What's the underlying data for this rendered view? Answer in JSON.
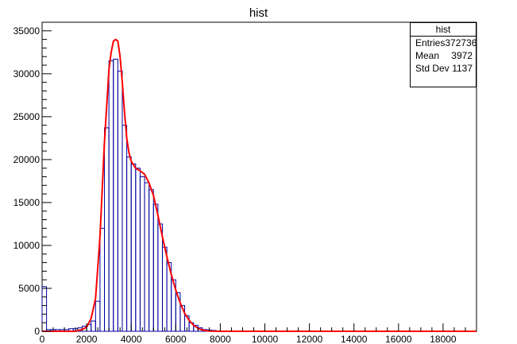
{
  "chart_data": {
    "type": "bar",
    "title": "hist",
    "xlabel": "",
    "ylabel": "",
    "xlim": [
      0,
      19500
    ],
    "ylim": [
      0,
      36000
    ],
    "x_ticks": [
      0,
      2000,
      4000,
      6000,
      8000,
      10000,
      12000,
      14000,
      16000,
      18000
    ],
    "y_ticks": [
      0,
      5000,
      10000,
      15000,
      20000,
      25000,
      30000,
      35000
    ],
    "grid": false,
    "legend": "none",
    "bin_width": 200,
    "histogram": {
      "x": [
        0,
        200,
        400,
        600,
        800,
        1000,
        1200,
        1400,
        1600,
        1800,
        2000,
        2200,
        2400,
        2600,
        2800,
        3000,
        3200,
        3400,
        3600,
        3800,
        4000,
        4200,
        4400,
        4600,
        4800,
        5000,
        5200,
        5400,
        5600,
        5800,
        6000,
        6200,
        6400,
        6600,
        6800,
        7000,
        7200,
        7400,
        7600,
        7800,
        8000
      ],
      "values": [
        5200,
        200,
        200,
        200,
        200,
        200,
        300,
        300,
        400,
        600,
        800,
        1200,
        3500,
        12000,
        23700,
        31500,
        31700,
        30300,
        24000,
        20300,
        19500,
        19000,
        18000,
        17300,
        16500,
        14800,
        12500,
        9800,
        8000,
        6000,
        4500,
        3000,
        1800,
        1000,
        700,
        400,
        200,
        150,
        100,
        50,
        0
      ]
    },
    "fit": {
      "x": [
        0,
        1000,
        1500,
        1800,
        2000,
        2200,
        2400,
        2600,
        2800,
        3000,
        3100,
        3200,
        3300,
        3400,
        3500,
        3600,
        3700,
        3800,
        3900,
        4000,
        4200,
        4400,
        4600,
        4800,
        5000,
        5200,
        5400,
        5600,
        5800,
        6000,
        6200,
        6400,
        6600,
        6800,
        7000,
        7200,
        7400,
        7600,
        7800,
        8000,
        8500,
        19500
      ],
      "values": [
        0,
        0,
        0,
        200,
        500,
        1500,
        3800,
        11000,
        22000,
        30500,
        32500,
        33800,
        34000,
        33800,
        32000,
        29000,
        25500,
        22500,
        20800,
        19800,
        19000,
        18700,
        18300,
        17300,
        15800,
        13500,
        11000,
        8700,
        6600,
        4800,
        3300,
        2100,
        1300,
        700,
        350,
        150,
        60,
        20,
        5,
        0,
        0,
        0
      ],
      "color": "#ff0000"
    },
    "histogram_color": "#0000a0",
    "stats_box": {
      "title": "hist",
      "rows": [
        {
          "label": "Entries",
          "value": "372736"
        },
        {
          "label": "Mean",
          "value": "3972"
        },
        {
          "label": "Std Dev",
          "value": "1137"
        }
      ]
    }
  }
}
